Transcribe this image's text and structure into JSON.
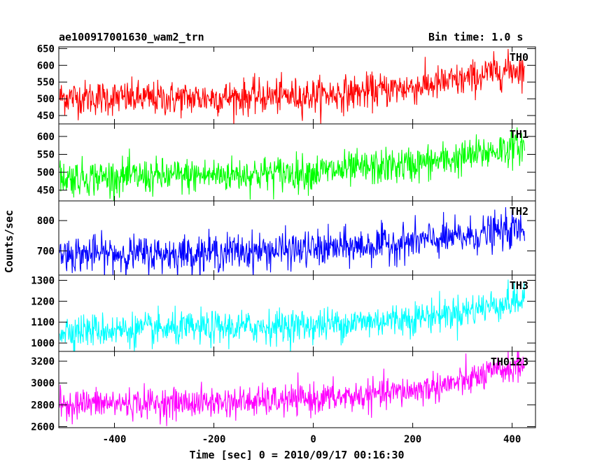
{
  "header": {
    "title": "ae100917001630_wam2_trn",
    "bin_time": "Bin time: 1.0 s"
  },
  "chart_data": {
    "type": "line",
    "title": "ae100917001630_wam2_trn",
    "subtitle": "Bin time: 1.0 s",
    "xlabel": "Time [sec] 0 = 2010/09/17 00:16:30",
    "ylabel": "Counts/sec",
    "xlim": [
      -512,
      447
    ],
    "x_range": [
      -510,
      425
    ],
    "x_step": 1,
    "x_ticks": [
      -400,
      -200,
      0,
      200,
      400
    ],
    "grid": false,
    "panels": [
      {
        "name": "TH0",
        "color": "#ff0000",
        "ylim": [
          425,
          655
        ],
        "y_ticks": [
          450,
          500,
          550,
          600,
          650
        ],
        "trend": [
          [
            -510,
            505
          ],
          [
            -300,
            500
          ],
          [
            0,
            510
          ],
          [
            100,
            520
          ],
          [
            200,
            535
          ],
          [
            300,
            555
          ],
          [
            380,
            585
          ],
          [
            425,
            590
          ]
        ],
        "noise_sd": 26
      },
      {
        "name": "TH1",
        "color": "#00ff00",
        "ylim": [
          420,
          635
        ],
        "y_ticks": [
          450,
          500,
          550,
          600
        ],
        "trend": [
          [
            -510,
            485
          ],
          [
            -300,
            488
          ],
          [
            0,
            500
          ],
          [
            100,
            510
          ],
          [
            200,
            522
          ],
          [
            300,
            540
          ],
          [
            380,
            565
          ],
          [
            425,
            575
          ]
        ],
        "noise_sd": 25
      },
      {
        "name": "TH2",
        "color": "#0000ff",
        "ylim": [
          620,
          865
        ],
        "y_ticks": [
          700,
          800
        ],
        "trend": [
          [
            -510,
            690
          ],
          [
            -300,
            690
          ],
          [
            0,
            705
          ],
          [
            100,
            715
          ],
          [
            200,
            730
          ],
          [
            300,
            745
          ],
          [
            380,
            765
          ],
          [
            425,
            770
          ]
        ],
        "noise_sd": 30
      },
      {
        "name": "TH3",
        "color": "#00ffff",
        "ylim": [
          960,
          1325
        ],
        "y_ticks": [
          1000,
          1100,
          1200,
          1300
        ],
        "trend": [
          [
            -510,
            1060
          ],
          [
            -300,
            1065
          ],
          [
            0,
            1085
          ],
          [
            100,
            1100
          ],
          [
            200,
            1120
          ],
          [
            300,
            1150
          ],
          [
            380,
            1190
          ],
          [
            425,
            1205
          ]
        ],
        "noise_sd": 40
      },
      {
        "name": "TH0123",
        "color": "#ff00ff",
        "ylim": [
          2590,
          3290
        ],
        "y_ticks": [
          2600,
          2800,
          3000,
          3200
        ],
        "trend": [
          [
            -510,
            2810
          ],
          [
            -300,
            2815
          ],
          [
            -100,
            2830
          ],
          [
            0,
            2855
          ],
          [
            100,
            2880
          ],
          [
            200,
            2930
          ],
          [
            300,
            3010
          ],
          [
            380,
            3120
          ],
          [
            425,
            3160
          ]
        ],
        "noise_sd": 70
      }
    ]
  }
}
